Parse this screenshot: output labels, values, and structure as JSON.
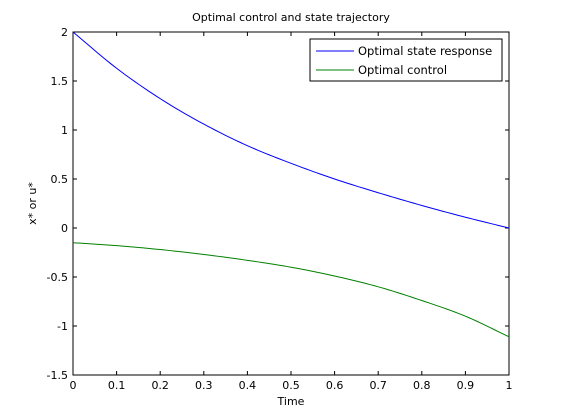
{
  "chart_data": {
    "type": "line",
    "title": "Optimal control and state trajectory",
    "xlabel": "Time",
    "ylabel": "x* or u*",
    "xlim": [
      0,
      1
    ],
    "ylim": [
      -1.5,
      2
    ],
    "grid": false,
    "legend_position": "top-right",
    "x_ticks": [
      0,
      0.1,
      0.2,
      0.3,
      0.4,
      0.5,
      0.6,
      0.7,
      0.8,
      0.9,
      1
    ],
    "x_tick_labels": [
      "0",
      "0.1",
      "0.2",
      "0.3",
      "0.4",
      "0.5",
      "0.6",
      "0.7",
      "0.8",
      "0.9",
      "1"
    ],
    "y_ticks": [
      -1.5,
      -1,
      -0.5,
      0,
      0.5,
      1,
      1.5,
      2
    ],
    "y_tick_labels": [
      "-1.5",
      "-1",
      "-0.5",
      "0",
      "0.5",
      "1",
      "1.5",
      "2"
    ],
    "x": [
      0,
      0.1,
      0.2,
      0.3,
      0.4,
      0.5,
      0.6,
      0.7,
      0.8,
      0.9,
      1
    ],
    "series": [
      {
        "name": "Optimal state response",
        "color": "#0000ff",
        "values": [
          2.0,
          1.63,
          1.32,
          1.06,
          0.84,
          0.66,
          0.5,
          0.36,
          0.23,
          0.11,
          0.0
        ]
      },
      {
        "name": "Optimal control",
        "color": "#008000",
        "values": [
          -0.15,
          -0.18,
          -0.22,
          -0.27,
          -0.33,
          -0.4,
          -0.49,
          -0.6,
          -0.74,
          -0.9,
          -1.11
        ]
      }
    ]
  }
}
